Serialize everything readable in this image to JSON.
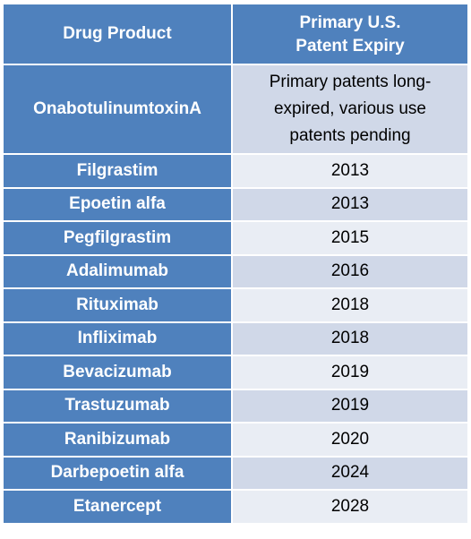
{
  "table": {
    "headers": {
      "drug": "Drug Product",
      "expiry_line1": "Primary U.S.",
      "expiry_line2": "Patent Expiry"
    },
    "rows": [
      {
        "drug": "OnabotulinumtoxinA",
        "expiry": "Primary patents long-expired, various use patents pending"
      },
      {
        "drug": "Filgrastim",
        "expiry": "2013"
      },
      {
        "drug": "Epoetin alfa",
        "expiry": "2013"
      },
      {
        "drug": "Pegfilgrastim",
        "expiry": "2015"
      },
      {
        "drug": "Adalimumab",
        "expiry": "2016"
      },
      {
        "drug": "Rituximab",
        "expiry": "2018"
      },
      {
        "drug": "Infliximab",
        "expiry": "2018"
      },
      {
        "drug": "Bevacizumab",
        "expiry": "2019"
      },
      {
        "drug": "Trastuzumab",
        "expiry": "2019"
      },
      {
        "drug": "Ranibizumab",
        "expiry": "2020"
      },
      {
        "drug": "Darbepoetin alfa",
        "expiry": "2024"
      },
      {
        "drug": "Etanercept",
        "expiry": "2028"
      }
    ]
  },
  "colors": {
    "header_fill": "#4f81bd",
    "row_band_dark": "#d0d8e8",
    "row_band_light": "#e9edf4"
  }
}
